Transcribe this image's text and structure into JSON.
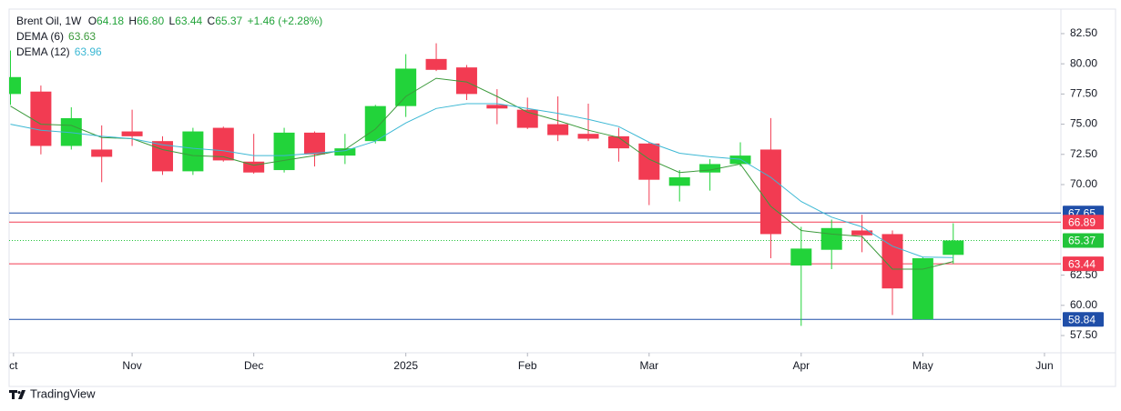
{
  "chart_data": {
    "type": "candlestick",
    "title": "Brent Oil, 1W",
    "header": {
      "ohlc": [
        {
          "key": "O",
          "value": "64.18"
        },
        {
          "key": "H",
          "value": "66.80"
        },
        {
          "key": "L",
          "value": "63.44"
        },
        {
          "key": "C",
          "value": "65.37"
        }
      ],
      "change": "+1.46 (+2.28%)"
    },
    "x": [
      0,
      1,
      2,
      3,
      4,
      5,
      6,
      7,
      8,
      9,
      10,
      11,
      12,
      13,
      14,
      15,
      16,
      17,
      18,
      19,
      20,
      21,
      22,
      23,
      24,
      25,
      26,
      27,
      28,
      29,
      30,
      31
    ],
    "open": [
      77.5,
      77.7,
      73.2,
      72.9,
      74.4,
      73.6,
      71.1,
      74.7,
      71.9,
      71.2,
      74.3,
      72.4,
      73.6,
      76.5,
      80.4,
      79.7,
      76.6,
      76.2,
      75.0,
      74.2,
      74.0,
      73.4,
      69.9,
      71.0,
      71.7,
      72.9,
      63.3,
      64.6,
      66.2,
      65.9,
      58.84,
      64.18
    ],
    "high": [
      81.1,
      78.2,
      76.4,
      74.9,
      76.2,
      74.0,
      74.7,
      74.8,
      74.2,
      74.7,
      74.4,
      74.2,
      76.6,
      80.8,
      81.7,
      79.9,
      77.9,
      77.2,
      77.3,
      76.7,
      74.7,
      73.5,
      71.2,
      72.1,
      73.5,
      75.5,
      66.5,
      67.1,
      67.5,
      66.2,
      64.0,
      66.8
    ],
    "low": [
      76.6,
      72.5,
      72.9,
      70.2,
      73.2,
      70.8,
      70.8,
      71.9,
      70.9,
      71.0,
      71.5,
      71.7,
      73.4,
      75.6,
      79.4,
      77.0,
      75.0,
      74.6,
      73.6,
      73.6,
      71.9,
      68.3,
      68.6,
      69.5,
      71.5,
      63.9,
      58.3,
      63.0,
      64.4,
      59.2,
      58.84,
      63.44
    ],
    "close": [
      78.9,
      73.2,
      75.5,
      72.3,
      74.0,
      71.1,
      74.4,
      72.0,
      71.0,
      74.3,
      72.5,
      73.0,
      76.5,
      79.6,
      79.5,
      77.5,
      76.3,
      74.7,
      74.1,
      73.8,
      73.0,
      70.4,
      70.6,
      71.7,
      72.4,
      65.9,
      64.7,
      66.4,
      65.8,
      61.4,
      63.9,
      65.37
    ],
    "up_color": "#22d33a",
    "down_color": "#f23b52",
    "series": [
      {
        "name": "DEMA (6)",
        "color": "#3b9a3b",
        "value_label": "63.63",
        "values": [
          76.5,
          75.0,
          74.9,
          73.9,
          73.8,
          72.9,
          72.4,
          72.3,
          71.6,
          72.0,
          72.4,
          72.9,
          74.6,
          77.3,
          78.8,
          78.5,
          77.3,
          76.0,
          75.3,
          74.5,
          73.9,
          72.1,
          71.0,
          71.2,
          71.7,
          68.2,
          66.2,
          65.9,
          65.7,
          63.0,
          63.0,
          63.63
        ]
      },
      {
        "name": "DEMA (12)",
        "color": "#3cb8d4",
        "value_label": "63.96",
        "values": [
          75.0,
          74.5,
          74.3,
          74.0,
          73.8,
          73.3,
          73.0,
          72.8,
          72.4,
          72.4,
          72.6,
          72.8,
          73.6,
          75.1,
          76.3,
          76.7,
          76.7,
          76.3,
          75.9,
          75.4,
          74.8,
          73.5,
          72.6,
          72.3,
          72.1,
          70.6,
          68.6,
          67.3,
          66.5,
          64.9,
          64.0,
          63.96
        ]
      }
    ],
    "xlim": [
      -0.045,
      34.54
    ],
    "xticks": [
      {
        "value": 0.1,
        "label": "ct"
      },
      {
        "value": 4,
        "label": "Nov"
      },
      {
        "value": 8,
        "label": "Dec"
      },
      {
        "value": 13,
        "label": "2025"
      },
      {
        "value": 17,
        "label": "Feb"
      },
      {
        "value": 21,
        "label": "Mar"
      },
      {
        "value": 26,
        "label": "Apr"
      },
      {
        "value": 30,
        "label": "May"
      },
      {
        "value": 34,
        "label": "Jun"
      }
    ],
    "ylim": [
      56.07,
      84.53
    ],
    "yticks": [
      {
        "value": 57.5,
        "label": "57.50"
      },
      {
        "value": 60,
        "label": "60.00"
      },
      {
        "value": 62.5,
        "label": "62.50"
      },
      {
        "value": 70,
        "label": "70.00"
      },
      {
        "value": 72.5,
        "label": "72.50"
      },
      {
        "value": 75,
        "label": "75.00"
      },
      {
        "value": 77.5,
        "label": "77.50"
      },
      {
        "value": 80,
        "label": "80.00"
      },
      {
        "value": 82.5,
        "label": "82.50"
      }
    ],
    "price_lines": [
      {
        "value": 67.65,
        "label": "67.65",
        "color": "#1f4ea8",
        "style": "solid"
      },
      {
        "value": 66.89,
        "label": "66.89",
        "color": "#f23b52",
        "style": "solid"
      },
      {
        "value": 65.37,
        "label": "65.37",
        "color": "#22c43a",
        "style": "dotted"
      },
      {
        "value": 63.44,
        "label": "63.44",
        "color": "#f23b52",
        "style": "solid"
      },
      {
        "value": 58.84,
        "label": "58.84",
        "color": "#1f4ea8",
        "style": "solid"
      }
    ],
    "grid": false,
    "brand": "TradingView"
  }
}
